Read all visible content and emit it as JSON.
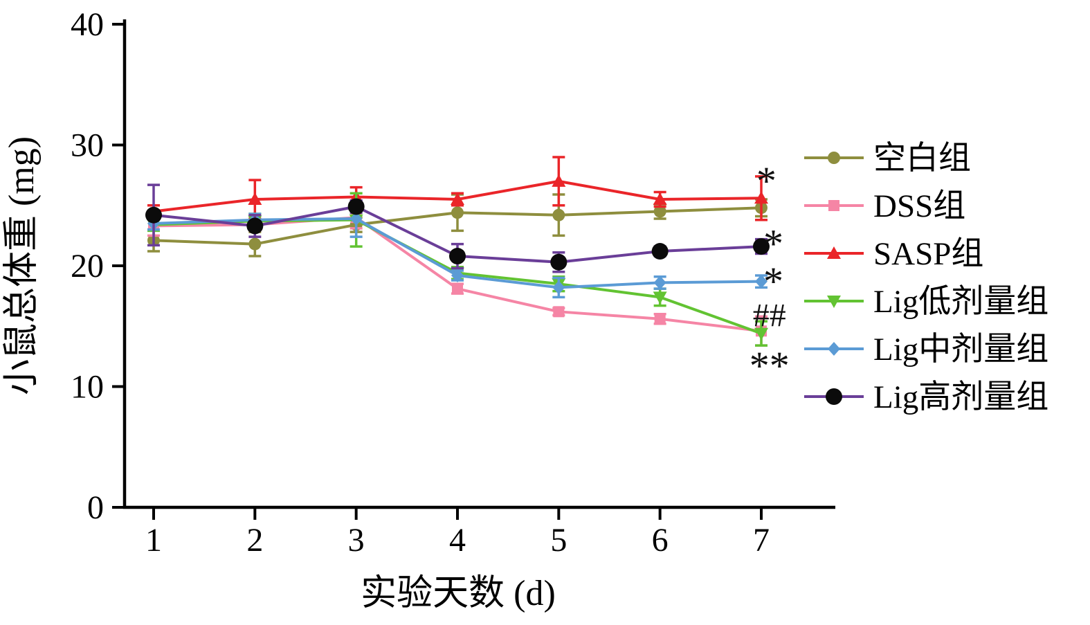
{
  "chart_data": {
    "type": "line",
    "title": "",
    "xlabel": "实验天数 (d)",
    "ylabel": "小鼠总体重 (mg)",
    "x": [
      1,
      2,
      3,
      4,
      5,
      6,
      7
    ],
    "xticks": [
      1,
      2,
      3,
      4,
      5,
      6,
      7
    ],
    "ylim": [
      0,
      40
    ],
    "yticks": [
      0,
      10,
      20,
      30,
      40
    ],
    "grid": false,
    "legend_position": "right",
    "axis_color": "#000000",
    "series": [
      {
        "name": "空白组",
        "color": "#8e8e3e",
        "marker": "circle",
        "values": [
          22.1,
          21.8,
          23.4,
          24.4,
          24.2,
          24.5,
          24.8
        ],
        "errors": [
          0.9,
          1.0,
          0.6,
          1.5,
          1.7,
          0.6,
          0.7
        ]
      },
      {
        "name": "DSS组",
        "color": "#f585a5",
        "marker": "square",
        "values": [
          23.3,
          23.4,
          24.0,
          18.1,
          16.2,
          15.6,
          14.6
        ],
        "errors": [
          0.8,
          0.5,
          0.9,
          0.4,
          0.3,
          0.4,
          1.2
        ]
      },
      {
        "name": "SASP组",
        "color": "#ea2529",
        "marker": "triangle-up",
        "values": [
          24.5,
          25.5,
          25.7,
          25.5,
          27.0,
          25.5,
          25.6
        ],
        "errors": [
          0.5,
          1.6,
          0.8,
          0.5,
          2.0,
          0.6,
          1.8
        ]
      },
      {
        "name": "Lig低剂量组",
        "color": "#62c332",
        "marker": "triangle-down",
        "values": [
          23.4,
          23.7,
          23.8,
          19.4,
          18.5,
          17.4,
          14.4
        ],
        "errors": [
          0.5,
          0.6,
          2.2,
          0.5,
          0.6,
          0.7,
          1.0
        ]
      },
      {
        "name": "Lig中剂量组",
        "color": "#5b9bd5",
        "marker": "diamond",
        "values": [
          23.5,
          23.8,
          23.9,
          19.2,
          18.2,
          18.6,
          18.7
        ],
        "errors": [
          0.5,
          0.5,
          1.5,
          0.4,
          0.8,
          0.5,
          0.5
        ]
      },
      {
        "name": "Lig高剂量组",
        "color": "#6a3e98",
        "marker": "circle-large",
        "marker_color": "#0b0b0b",
        "values": [
          24.2,
          23.3,
          24.9,
          20.8,
          20.3,
          21.2,
          21.6
        ],
        "errors": [
          2.5,
          0.9,
          0.5,
          1.0,
          0.8,
          0.4,
          0.6
        ]
      }
    ],
    "annotations": [
      {
        "text": "*",
        "x": 7.05,
        "y": 27.4
      },
      {
        "text": "*",
        "x": 7.12,
        "y": 22.2
      },
      {
        "text": "*",
        "x": 7.12,
        "y": 19.1
      },
      {
        "text": "##",
        "x": 7.08,
        "y": 15.9
      },
      {
        "text": "**",
        "x": 7.08,
        "y": 12.1
      }
    ]
  }
}
